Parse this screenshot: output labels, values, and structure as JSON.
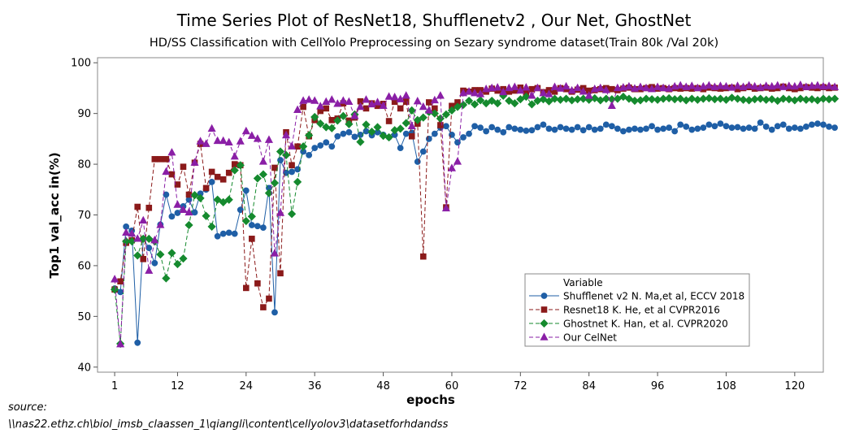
{
  "chart_data": {
    "type": "line",
    "title": "Time Series Plot of ResNet18, Shufflenetv2 , Our Net, GhostNet",
    "subtitle": "HD/SS Classification with CellYolo Preprocessing on Sezary syndrome dataset(Train 80k /Val 20k)",
    "xlabel": "epochs",
    "ylabel": "Top1 val_acc in(%)",
    "xlim": [
      -2,
      125
    ],
    "ylim": [
      39,
      101
    ],
    "xticks": [
      1,
      12,
      24,
      36,
      48,
      60,
      72,
      84,
      96,
      108,
      120
    ],
    "yticks": [
      40,
      50,
      60,
      70,
      80,
      90,
      100
    ],
    "grid": false,
    "legend_title": "Variable",
    "legend_position": "bottom-right",
    "series": [
      {
        "name": "Shufflenet v2 N. Ma,et al, ECCV 2018",
        "color": "#1f5fa6",
        "marker": "circle",
        "dash": "solid",
        "values": [
          55.5,
          54.8,
          67.7,
          66.9,
          44.8,
          65.3,
          63.5,
          60.5,
          68.1,
          74.0,
          69.7,
          70.4,
          71.7,
          73.0,
          70.5,
          74.2,
          75.0,
          76.5,
          65.8,
          66.3,
          66.5,
          66.3,
          71.0,
          74.8,
          68.0,
          67.8,
          67.5,
          75.3,
          50.8,
          80.8,
          78.3,
          78.5,
          79.0,
          82.5,
          81.8,
          83.2,
          83.7,
          84.3,
          83.5,
          85.5,
          86.0,
          86.3,
          85.4,
          85.8,
          86.5,
          85.7,
          86.3,
          85.8,
          85.3,
          85.8,
          83.2,
          86.0,
          86.2,
          80.5,
          82.5,
          85.0,
          86.0,
          87.2,
          87.5,
          85.8,
          84.3,
          85.3,
          86.0,
          87.5,
          87.2,
          86.5,
          87.3,
          86.8,
          86.3,
          87.3,
          87.0,
          86.8,
          86.6,
          86.7,
          87.3,
          87.8,
          87.0,
          86.8,
          87.3,
          87.0,
          86.8,
          87.3,
          86.7,
          87.3,
          86.8,
          87.0,
          87.8,
          87.5,
          87.0,
          86.5,
          86.8,
          87.0,
          86.8,
          87.0,
          87.5,
          86.8,
          87.0,
          87.2,
          86.5,
          87.8,
          87.4,
          86.8,
          87.0,
          87.2,
          87.8,
          87.5,
          88.0,
          87.5,
          87.2,
          87.3,
          87.0,
          87.2,
          87.0,
          88.2,
          87.4,
          86.8,
          87.5,
          87.8,
          87.0,
          87.2,
          87.0,
          87.4,
          87.8,
          88.0,
          87.8,
          87.4,
          87.2
        ]
      },
      {
        "name": "Resnet18 K. He, et al CVPR2016",
        "color": "#8b1a1a",
        "marker": "square",
        "dash": "dashed",
        "values": [
          55.3,
          56.9,
          64.5,
          65.0,
          71.6,
          61.3,
          71.4,
          81.0,
          81.0,
          81.0,
          78.0,
          76.0,
          79.5,
          74.0,
          80.3,
          84.0,
          75.3,
          78.5,
          77.5,
          77.0,
          78.3,
          80.0,
          79.8,
          55.6,
          65.3,
          56.5,
          51.8,
          53.5,
          79.3,
          58.5,
          86.3,
          79.8,
          83.5,
          91.3,
          85.5,
          88.7,
          90.5,
          91.0,
          88.7,
          89.0,
          92.0,
          88.6,
          89.2,
          92.4,
          91.0,
          92.0,
          91.5,
          91.9,
          88.5,
          92.3,
          91.0,
          92.3,
          85.5,
          88.0,
          61.8,
          92.2,
          91.0,
          87.7,
          71.5,
          91.5,
          92.2,
          94.5,
          94.3,
          94.6,
          94.6,
          94.3,
          94.9,
          94.5,
          94.8,
          94.3,
          94.5,
          95.1,
          94.0,
          94.8,
          95.0,
          94.2,
          94.6,
          94.3,
          95.0,
          94.8,
          94.3,
          94.7,
          95.0,
          94.5,
          94.6,
          94.8,
          95.0,
          94.8,
          94.6,
          94.9,
          95.1,
          94.8,
          94.8,
          95.0,
          95.2,
          94.9,
          95.0,
          94.8,
          95.0,
          94.9,
          95.0,
          94.9,
          95.0,
          94.8,
          95.1,
          95.0,
          94.9,
          95.0,
          95.1,
          94.8,
          95.0,
          95.2,
          94.9,
          95.0,
          95.1,
          94.9,
          95.0,
          95.3,
          95.0,
          94.8,
          95.0,
          95.2,
          95.1,
          95.0,
          95.2,
          95.0,
          95.1
        ]
      },
      {
        "name": "Ghostnet K. Han, et al. CVPR2020",
        "color": "#158a2e",
        "marker": "diamond",
        "dash": "dashed",
        "values": [
          55.3,
          44.6,
          64.8,
          64.8,
          62.0,
          65.3,
          65.3,
          64.8,
          62.2,
          57.5,
          62.5,
          60.3,
          61.4,
          68.0,
          73.9,
          73.3,
          69.8,
          67.7,
          73.0,
          72.5,
          73.0,
          78.8,
          79.8,
          68.8,
          69.7,
          77.2,
          78.0,
          74.3,
          76.3,
          82.5,
          81.8,
          70.2,
          76.5,
          83.5,
          85.7,
          89.3,
          88.0,
          87.3,
          87.1,
          88.6,
          89.5,
          87.9,
          89.8,
          84.4,
          87.8,
          86.4,
          87.3,
          85.6,
          85.3,
          86.7,
          87.0,
          88.1,
          90.6,
          88.7,
          89.2,
          90.3,
          90.0,
          89.0,
          89.8,
          90.6,
          91.3,
          91.7,
          92.5,
          91.8,
          92.6,
          92.0,
          92.5,
          92.0,
          93.5,
          92.5,
          92.0,
          92.8,
          93.3,
          91.8,
          92.5,
          92.8,
          92.4,
          92.9,
          92.7,
          92.9,
          92.6,
          92.8,
          92.9,
          92.7,
          93.0,
          92.6,
          92.9,
          92.8,
          92.9,
          93.3,
          92.9,
          92.5,
          92.6,
          92.9,
          92.8,
          92.7,
          92.9,
          93.0,
          92.8,
          92.9,
          92.6,
          92.9,
          92.7,
          92.9,
          93.0,
          92.8,
          92.9,
          92.7,
          93.1,
          92.9,
          92.7,
          92.6,
          92.8,
          92.9,
          92.7,
          92.8,
          92.5,
          92.9,
          92.8,
          92.6,
          92.9,
          92.7,
          92.8,
          92.6,
          92.9,
          92.8,
          92.9
        ]
      },
      {
        "name": "Our CelNet",
        "color": "#8a1fa6",
        "marker": "triangle",
        "dash": "dashed",
        "values": [
          57.3,
          44.5,
          66.5,
          66.3,
          65.3,
          68.9,
          59.0,
          65.0,
          68.0,
          78.5,
          82.3,
          72.0,
          71.0,
          70.5,
          80.3,
          84.5,
          84.0,
          87.0,
          84.6,
          84.6,
          84.3,
          81.5,
          84.5,
          86.5,
          85.6,
          85.0,
          80.5,
          84.8,
          62.4,
          70.4,
          85.7,
          83.5,
          90.7,
          92.5,
          92.7,
          92.5,
          91.4,
          92.3,
          92.7,
          91.9,
          92.5,
          92.3,
          89.5,
          91.3,
          92.7,
          91.8,
          92.2,
          91.5,
          93.3,
          93.2,
          92.8,
          93.5,
          87.5,
          92.4,
          91.3,
          90.6,
          92.6,
          93.5,
          71.3,
          79.2,
          80.5,
          94.0,
          94.3,
          94.0,
          93.8,
          94.8,
          95.0,
          95.1,
          94.2,
          95.0,
          95.2,
          94.5,
          95.1,
          93.5,
          95.0,
          94.0,
          93.8,
          95.2,
          94.9,
          95.3,
          94.5,
          95.0,
          94.3,
          93.5,
          94.8,
          95.0,
          94.6,
          91.5,
          95.0,
          95.1,
          95.3,
          94.9,
          95.2,
          95.0,
          94.8,
          95.2,
          95.0,
          94.9,
          95.3,
          95.5,
          95.2,
          95.4,
          95.0,
          95.3,
          95.5,
          95.2,
          95.4,
          95.3,
          95.1,
          95.4,
          95.2,
          95.5,
          95.3,
          95.1,
          95.4,
          95.3,
          95.5,
          95.2,
          95.4,
          95.3,
          95.6,
          95.2,
          95.4,
          95.5,
          95.3,
          95.4,
          95.2
        ]
      }
    ]
  },
  "source": {
    "label": "source:",
    "path": "\\\\nas22.ethz.ch\\biol_imsb_claassen_1\\qiangli\\content\\cellyolov3\\datasetforhdandss"
  }
}
